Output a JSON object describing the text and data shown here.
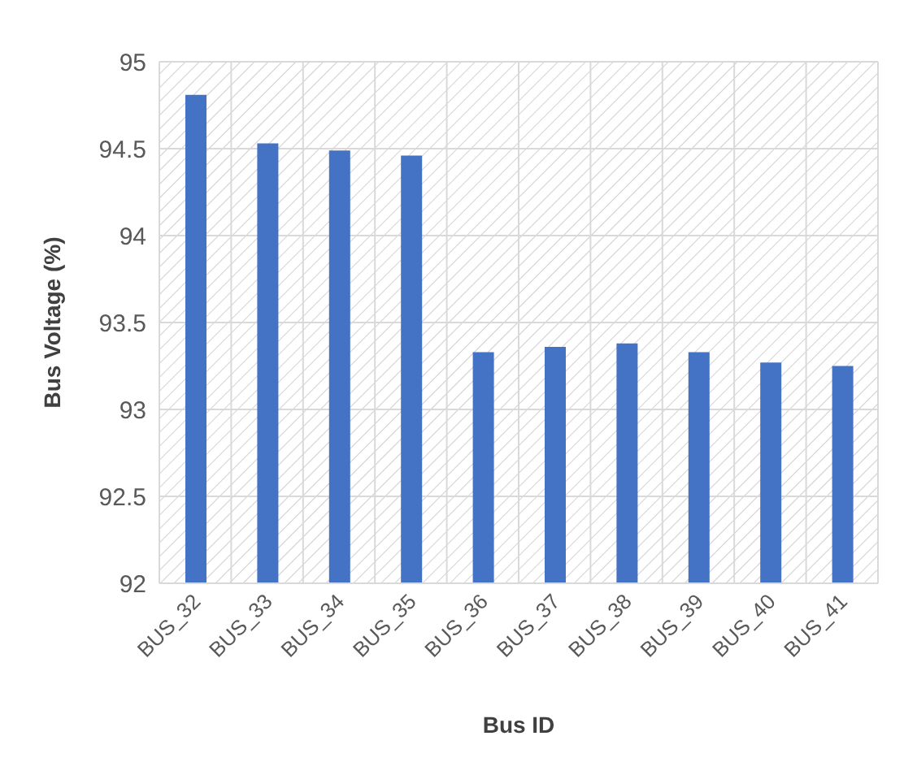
{
  "chart_data": {
    "type": "bar",
    "xlabel": "Bus ID",
    "ylabel": "Bus Voltage (%)",
    "categories": [
      "BUS_32",
      "BUS_33",
      "BUS_34",
      "BUS_35",
      "BUS_36",
      "BUS_37",
      "BUS_38",
      "BUS_39",
      "BUS_40",
      "BUS_41"
    ],
    "values": [
      94.81,
      94.53,
      94.49,
      94.46,
      93.33,
      93.36,
      93.38,
      93.33,
      93.27,
      93.25
    ],
    "color": "#4472c4",
    "ylim": [
      92,
      95
    ],
    "yticks": [
      92,
      92.5,
      93,
      93.5,
      94,
      94.5,
      95
    ],
    "grid": true
  }
}
